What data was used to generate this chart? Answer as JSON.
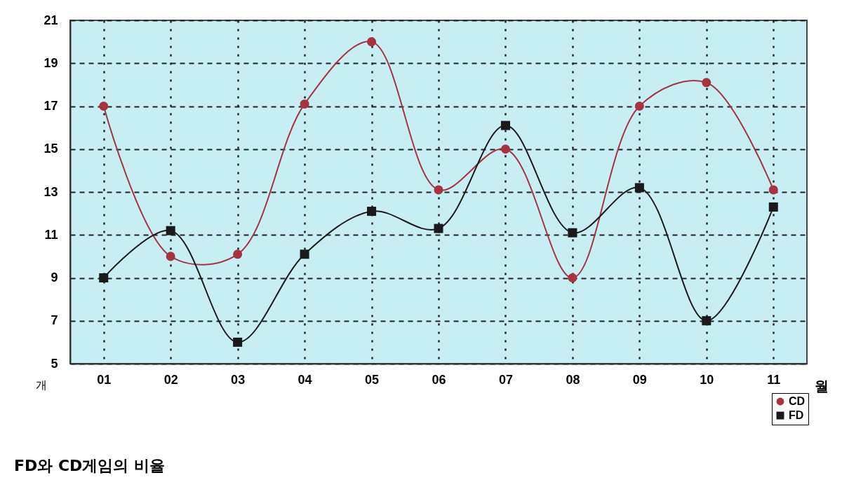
{
  "chart_data": {
    "type": "line",
    "title": "FD와 CD게임의 비율",
    "xlabel": "월",
    "ylabel": "개",
    "categories": [
      "01",
      "02",
      "03",
      "04",
      "05",
      "06",
      "07",
      "08",
      "09",
      "10",
      "11"
    ],
    "series": [
      {
        "name": "CD",
        "color": "#a83240",
        "marker": "circle",
        "values": [
          17,
          10,
          10.1,
          17.1,
          20,
          13.1,
          15,
          9,
          17,
          18.1,
          13.1
        ]
      },
      {
        "name": "FD",
        "color": "#1a1a1a",
        "marker": "square",
        "values": [
          9,
          11.2,
          6,
          10.1,
          12.1,
          11.3,
          16.1,
          11.1,
          13.2,
          7,
          12.3
        ]
      }
    ],
    "ylim": [
      5,
      21
    ],
    "yticks": [
      5,
      7,
      9,
      11,
      13,
      15,
      17,
      19,
      21
    ],
    "grid": true,
    "legend": "bottom right",
    "line_style": "solid"
  }
}
